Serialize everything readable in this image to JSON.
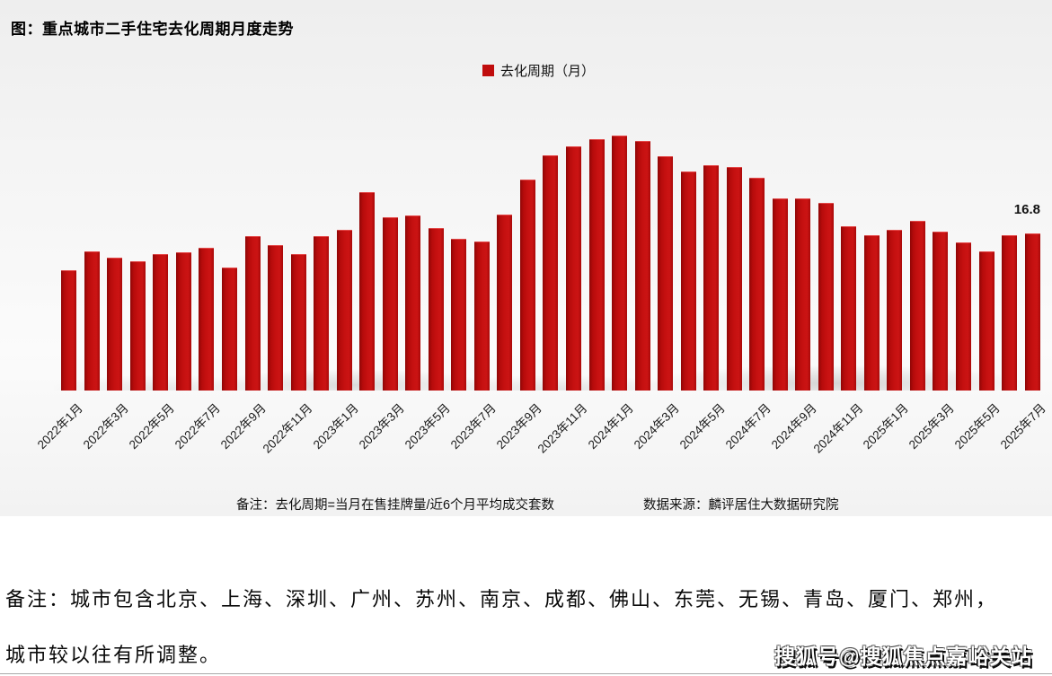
{
  "chart": {
    "title": "图：重点城市二手住宅去化周期月度走势",
    "legend_label": "去化周期（月）",
    "note_left": "备注：去化周期=当月在售挂牌量/近6个月平均成交套数",
    "note_right": "数据来源：麟评居住大数据研究院"
  },
  "chart_data": {
    "type": "bar",
    "title": "图：重点城市二手住宅去化周期月度走势",
    "legend": [
      "去化周期（月）"
    ],
    "legend_position": "top-center",
    "grid": false,
    "ylabel": "去化周期（月）",
    "xlabel": "",
    "ylim": [
      0,
      29
    ],
    "bar_color": "#c00d0d",
    "categories": [
      "2022年1月",
      "2022年2月",
      "2022年3月",
      "2022年4月",
      "2022年5月",
      "2022年6月",
      "2022年7月",
      "2022年8月",
      "2022年9月",
      "2022年10月",
      "2022年11月",
      "2022年12月",
      "2023年1月",
      "2023年2月",
      "2023年3月",
      "2023年4月",
      "2023年5月",
      "2023年6月",
      "2023年7月",
      "2023年8月",
      "2023年9月",
      "2023年10月",
      "2023年11月",
      "2023年12月",
      "2024年1月",
      "2024年2月",
      "2024年3月",
      "2024年4月",
      "2024年5月",
      "2024年6月",
      "2024年7月",
      "2024年8月",
      "2024年9月",
      "2024年10月",
      "2024年11月",
      "2024年12月",
      "2025年1月",
      "2025年2月",
      "2025年3月",
      "2025年4月",
      "2025年5月",
      "2025年6月",
      "2025年7月"
    ],
    "values": [
      12.9,
      14.9,
      14.2,
      13.8,
      14.6,
      14.8,
      15.3,
      13.1,
      16.5,
      15.5,
      14.6,
      16.5,
      17.2,
      21.2,
      18.5,
      18.7,
      17.4,
      16.2,
      15.9,
      18.8,
      22.6,
      25.1,
      26.1,
      26.9,
      27.3,
      26.7,
      25.0,
      23.4,
      24.1,
      23.9,
      22.7,
      20.5,
      20.5,
      20.1,
      17.6,
      16.6,
      17.2,
      18.1,
      17.0,
      15.8,
      14.9,
      16.6,
      16.8
    ],
    "x_tick_labels_shown": [
      "2022年1月",
      "2022年3月",
      "2022年5月",
      "2022年7月",
      "2022年9月",
      "2022年11月",
      "2023年1月",
      "2023年3月",
      "2023年5月",
      "2023年7月",
      "2023年9月",
      "2023年11月",
      "2024年1月",
      "2024年3月",
      "2024年5月",
      "2024年7月",
      "2024年9月",
      "2024年11月",
      "2025年1月",
      "2025年3月",
      "2025年5月",
      "2025年7月"
    ],
    "annotation": {
      "text": "16.8",
      "category": "2025年7月",
      "value": 16.8
    }
  },
  "footnotes": {
    "line1": "备注：城市包含北京、上海、深圳、广州、苏州、南京、成都、佛山、东莞、无锡、青岛、厦门、郑州，",
    "line2": "城市较以往有所调整。"
  },
  "watermark": {
    "text": "搜狐号@搜狐焦点嘉峪关站"
  }
}
